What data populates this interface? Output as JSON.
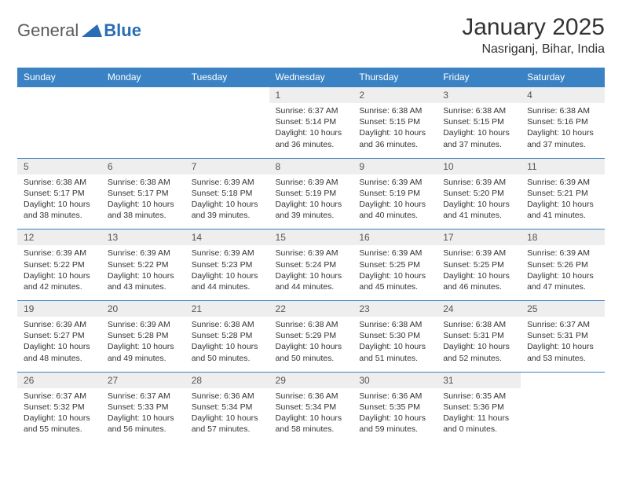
{
  "logo": {
    "general": "General",
    "blue": "Blue"
  },
  "title": "January 2025",
  "location": "Nasriganj, Bihar, India",
  "colors": {
    "header_bg": "#3a82c4",
    "header_text": "#ffffff",
    "datenum_bg": "#eeeeee",
    "row_divider": "#3a82c4",
    "logo_blue": "#2a6db5"
  },
  "day_headers": [
    "Sunday",
    "Monday",
    "Tuesday",
    "Wednesday",
    "Thursday",
    "Friday",
    "Saturday"
  ],
  "weeks": [
    {
      "nums": [
        "",
        "",
        "",
        "1",
        "2",
        "3",
        "4"
      ],
      "details": [
        "",
        "",
        "",
        "Sunrise: 6:37 AM\nSunset: 5:14 PM\nDaylight: 10 hours and 36 minutes.",
        "Sunrise: 6:38 AM\nSunset: 5:15 PM\nDaylight: 10 hours and 36 minutes.",
        "Sunrise: 6:38 AM\nSunset: 5:15 PM\nDaylight: 10 hours and 37 minutes.",
        "Sunrise: 6:38 AM\nSunset: 5:16 PM\nDaylight: 10 hours and 37 minutes."
      ]
    },
    {
      "nums": [
        "5",
        "6",
        "7",
        "8",
        "9",
        "10",
        "11"
      ],
      "details": [
        "Sunrise: 6:38 AM\nSunset: 5:17 PM\nDaylight: 10 hours and 38 minutes.",
        "Sunrise: 6:38 AM\nSunset: 5:17 PM\nDaylight: 10 hours and 38 minutes.",
        "Sunrise: 6:39 AM\nSunset: 5:18 PM\nDaylight: 10 hours and 39 minutes.",
        "Sunrise: 6:39 AM\nSunset: 5:19 PM\nDaylight: 10 hours and 39 minutes.",
        "Sunrise: 6:39 AM\nSunset: 5:19 PM\nDaylight: 10 hours and 40 minutes.",
        "Sunrise: 6:39 AM\nSunset: 5:20 PM\nDaylight: 10 hours and 41 minutes.",
        "Sunrise: 6:39 AM\nSunset: 5:21 PM\nDaylight: 10 hours and 41 minutes."
      ]
    },
    {
      "nums": [
        "12",
        "13",
        "14",
        "15",
        "16",
        "17",
        "18"
      ],
      "details": [
        "Sunrise: 6:39 AM\nSunset: 5:22 PM\nDaylight: 10 hours and 42 minutes.",
        "Sunrise: 6:39 AM\nSunset: 5:22 PM\nDaylight: 10 hours and 43 minutes.",
        "Sunrise: 6:39 AM\nSunset: 5:23 PM\nDaylight: 10 hours and 44 minutes.",
        "Sunrise: 6:39 AM\nSunset: 5:24 PM\nDaylight: 10 hours and 44 minutes.",
        "Sunrise: 6:39 AM\nSunset: 5:25 PM\nDaylight: 10 hours and 45 minutes.",
        "Sunrise: 6:39 AM\nSunset: 5:25 PM\nDaylight: 10 hours and 46 minutes.",
        "Sunrise: 6:39 AM\nSunset: 5:26 PM\nDaylight: 10 hours and 47 minutes."
      ]
    },
    {
      "nums": [
        "19",
        "20",
        "21",
        "22",
        "23",
        "24",
        "25"
      ],
      "details": [
        "Sunrise: 6:39 AM\nSunset: 5:27 PM\nDaylight: 10 hours and 48 minutes.",
        "Sunrise: 6:39 AM\nSunset: 5:28 PM\nDaylight: 10 hours and 49 minutes.",
        "Sunrise: 6:38 AM\nSunset: 5:28 PM\nDaylight: 10 hours and 50 minutes.",
        "Sunrise: 6:38 AM\nSunset: 5:29 PM\nDaylight: 10 hours and 50 minutes.",
        "Sunrise: 6:38 AM\nSunset: 5:30 PM\nDaylight: 10 hours and 51 minutes.",
        "Sunrise: 6:38 AM\nSunset: 5:31 PM\nDaylight: 10 hours and 52 minutes.",
        "Sunrise: 6:37 AM\nSunset: 5:31 PM\nDaylight: 10 hours and 53 minutes."
      ]
    },
    {
      "nums": [
        "26",
        "27",
        "28",
        "29",
        "30",
        "31",
        ""
      ],
      "details": [
        "Sunrise: 6:37 AM\nSunset: 5:32 PM\nDaylight: 10 hours and 55 minutes.",
        "Sunrise: 6:37 AM\nSunset: 5:33 PM\nDaylight: 10 hours and 56 minutes.",
        "Sunrise: 6:36 AM\nSunset: 5:34 PM\nDaylight: 10 hours and 57 minutes.",
        "Sunrise: 6:36 AM\nSunset: 5:34 PM\nDaylight: 10 hours and 58 minutes.",
        "Sunrise: 6:36 AM\nSunset: 5:35 PM\nDaylight: 10 hours and 59 minutes.",
        "Sunrise: 6:35 AM\nSunset: 5:36 PM\nDaylight: 11 hours and 0 minutes.",
        ""
      ]
    }
  ]
}
